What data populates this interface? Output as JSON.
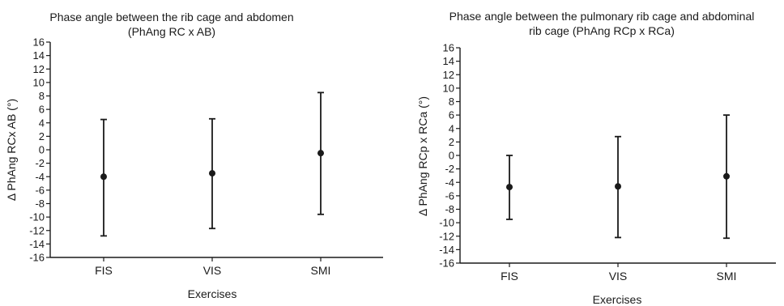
{
  "chart_data": [
    {
      "type": "scatter",
      "title_line1": "Phase angle between the rib cage and abdomen",
      "title_line2": "(PhAng RC x AB)",
      "xlabel": "Exercises",
      "ylabel": "Δ PhAng RCx AB (°)",
      "ylim": [
        -16,
        16
      ],
      "yticks": [
        16,
        14,
        12,
        10,
        8,
        6,
        4,
        2,
        0,
        -2,
        -4,
        -6,
        -8,
        -10,
        -12,
        -14,
        -16
      ],
      "categories": [
        "FIS",
        "VIS",
        "SMI"
      ],
      "mean": [
        -4.0,
        -3.5,
        -0.5
      ],
      "lower": [
        -12.8,
        -11.7,
        -9.6
      ],
      "upper": [
        4.5,
        4.6,
        8.5
      ]
    },
    {
      "type": "scatter",
      "title_line1": "Phase angle between the pulmonary rib cage and abdominal",
      "title_line2": "rib cage  (PhAng RCp x RCa)",
      "xlabel": "Exercises",
      "ylabel": "Δ PhAng RCp x RCa (°)",
      "ylim": [
        -16,
        16
      ],
      "yticks": [
        16,
        14,
        12,
        10,
        8,
        6,
        4,
        2,
        0,
        -2,
        -4,
        -6,
        -8,
        -10,
        -12,
        -14,
        -16
      ],
      "categories": [
        "FIS",
        "VIS",
        "SMI"
      ],
      "mean": [
        -4.7,
        -4.6,
        -3.1
      ],
      "lower": [
        -9.5,
        -12.2,
        -12.3
      ],
      "upper": [
        0.0,
        2.8,
        6.0
      ]
    }
  ]
}
